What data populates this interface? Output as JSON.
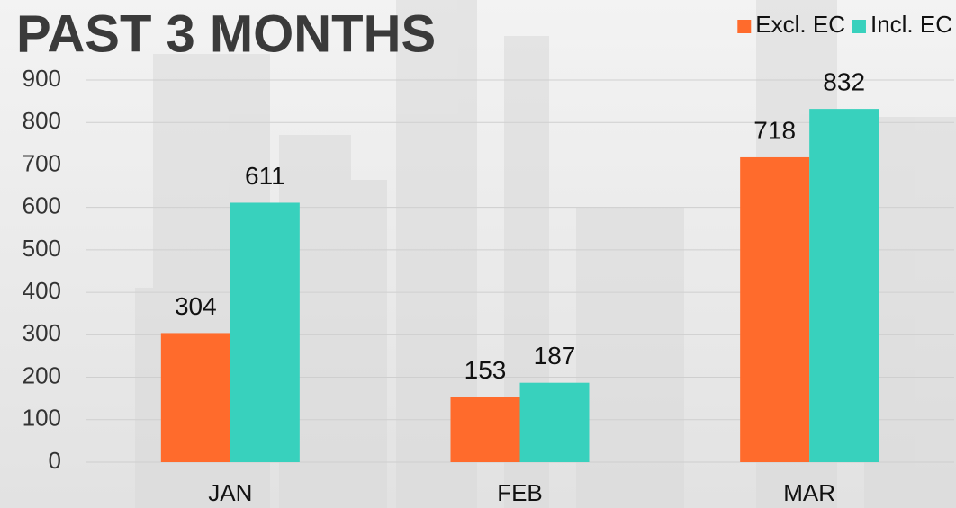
{
  "chart_data": {
    "type": "bar",
    "title": "PAST 3 MONTHS",
    "categories": [
      "JAN",
      "FEB",
      "MAR"
    ],
    "series": [
      {
        "name": "Excl. EC",
        "color": "#ff6b2c",
        "values": [
          304,
          153,
          718
        ]
      },
      {
        "name": "Incl. EC",
        "color": "#38d1bd",
        "values": [
          611,
          187,
          832
        ]
      }
    ],
    "ylim": [
      0,
      900
    ],
    "yticks": [
      0,
      100,
      200,
      300,
      400,
      500,
      600,
      700,
      800,
      900
    ],
    "grid": true,
    "legend": "top-right"
  }
}
